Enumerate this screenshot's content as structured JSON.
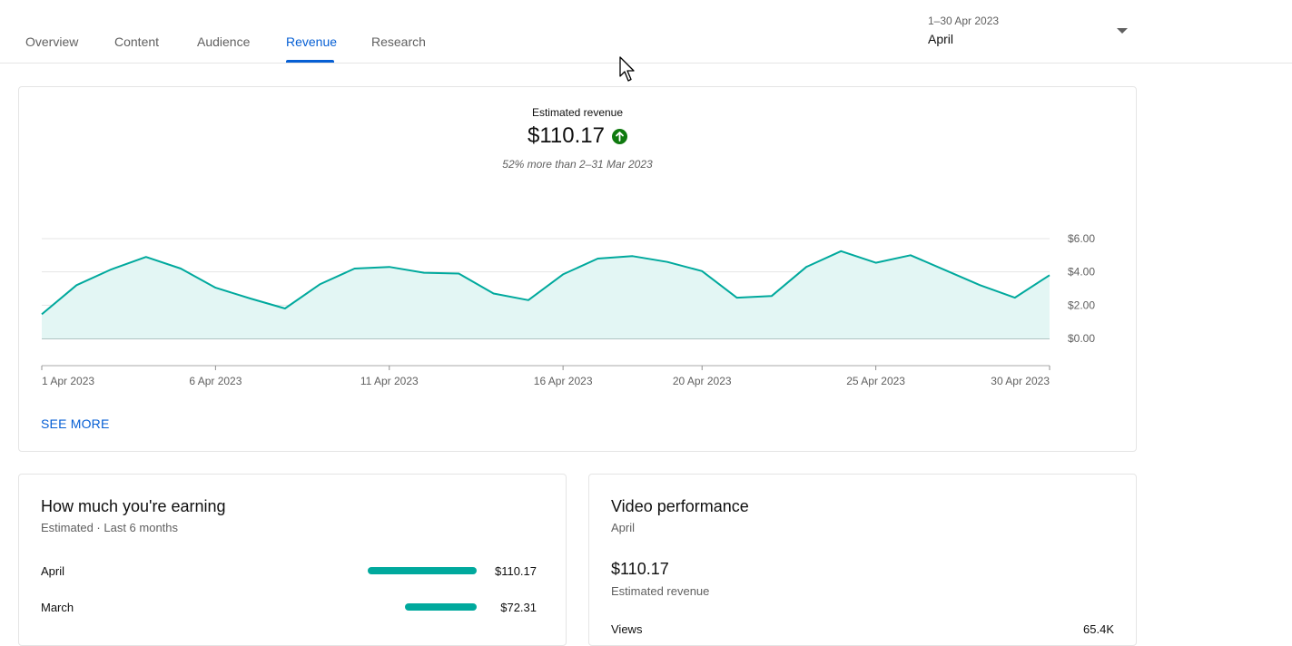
{
  "tabs": [
    {
      "label": "Overview",
      "active": false
    },
    {
      "label": "Content",
      "active": false
    },
    {
      "label": "Audience",
      "active": false
    },
    {
      "label": "Revenue",
      "active": true
    },
    {
      "label": "Research",
      "active": false
    }
  ],
  "date_range": {
    "label": "1–30 Apr 2023",
    "value": "April"
  },
  "revenue_card": {
    "metric_label": "Estimated revenue",
    "metric_value": "$110.17",
    "trend_icon": "arrow-up-icon",
    "comparison": "52% more than 2–31 Mar 2023",
    "see_more": "SEE MORE"
  },
  "chart_data": {
    "type": "area",
    "x": [
      "1 Apr 2023",
      "2 Apr 2023",
      "3 Apr 2023",
      "4 Apr 2023",
      "5 Apr 2023",
      "6 Apr 2023",
      "7 Apr 2023",
      "8 Apr 2023",
      "9 Apr 2023",
      "10 Apr 2023",
      "11 Apr 2023",
      "12 Apr 2023",
      "13 Apr 2023",
      "14 Apr 2023",
      "15 Apr 2023",
      "16 Apr 2023",
      "17 Apr 2023",
      "18 Apr 2023",
      "19 Apr 2023",
      "20 Apr 2023",
      "21 Apr 2023",
      "22 Apr 2023",
      "23 Apr 2023",
      "24 Apr 2023",
      "25 Apr 2023",
      "26 Apr 2023",
      "27 Apr 2023",
      "28 Apr 2023",
      "29 Apr 2023",
      "30 Apr 2023"
    ],
    "series": [
      {
        "values": [
          1.45,
          3.2,
          4.15,
          4.9,
          4.2,
          3.05,
          2.4,
          1.8,
          3.25,
          4.2,
          4.3,
          3.95,
          3.9,
          2.7,
          2.3,
          3.85,
          4.8,
          4.95,
          4.6,
          4.05,
          2.45,
          2.55,
          4.3,
          5.25,
          4.55,
          5.0,
          4.1,
          3.2,
          2.45,
          3.8
        ]
      }
    ],
    "x_tick_labels": [
      "1 Apr 2023",
      "6 Apr 2023",
      "11 Apr 2023",
      "16 Apr 2023",
      "20 Apr 2023",
      "25 Apr 2023",
      "30 Apr 2023"
    ],
    "y_tick_labels": [
      "$0.00",
      "$2.00",
      "$4.00",
      "$6.00"
    ],
    "y_ticks": [
      0,
      2,
      4,
      6
    ],
    "ylim": [
      0,
      6
    ],
    "grid": true,
    "line_color": "#00a99d",
    "fill_color": "#e3f6f4"
  },
  "earning_card": {
    "title": "How much you're earning",
    "subtitle": "Estimated · Last 6 months",
    "rows": [
      {
        "label": "April",
        "value": "$110.17",
        "amount": 110.17
      },
      {
        "label": "March",
        "value": "$72.31",
        "amount": 72.31
      }
    ]
  },
  "video_card": {
    "title": "Video performance",
    "subtitle": "April",
    "value": "$110.17",
    "value_label": "Estimated revenue",
    "views_label": "Views",
    "views_value": "65.4K"
  },
  "colors": {
    "accent": "#065fd4",
    "teal": "#00a99d",
    "up_green": "#0f7a0f"
  }
}
